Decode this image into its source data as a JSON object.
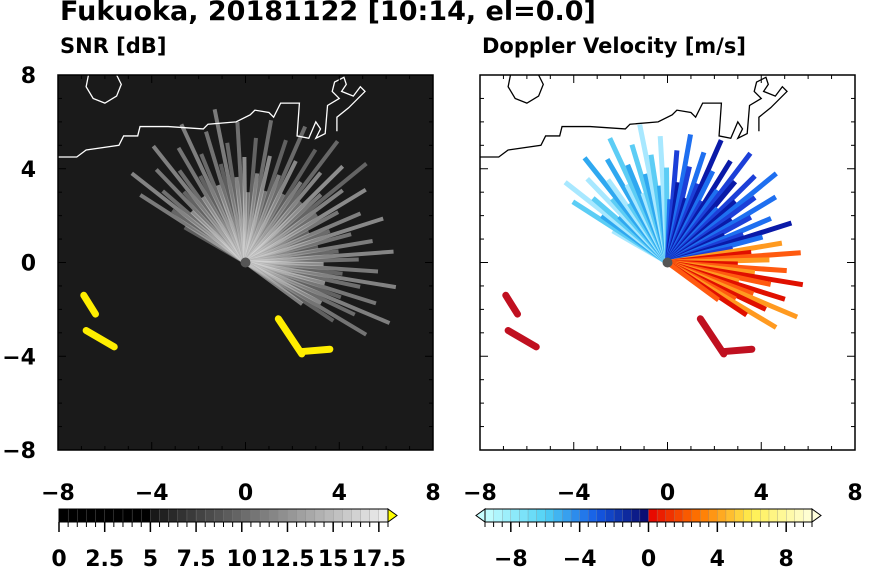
{
  "title": "Fukuoka, 20181122 [10:14, el=0.0]",
  "chart_data": [
    {
      "type": "heatmap",
      "title": "SNR [dB]",
      "xlim": [
        -8,
        8
      ],
      "ylim": [
        -8,
        8
      ],
      "xticks": [
        "−8",
        "−4",
        "0",
        "4",
        "8"
      ],
      "yticks": [
        "8",
        "4",
        "0",
        "−4",
        "−8"
      ],
      "colorbar": {
        "min": 0,
        "max": 18,
        "labels": [
          "0",
          "2.5",
          "5",
          "7.5",
          "10",
          "12.5",
          "15",
          "17.5"
        ],
        "values": [
          0,
          2.5,
          5,
          7.5,
          10,
          12.5,
          15,
          17.5
        ],
        "extend": "max",
        "over_color": "#ffff00"
      },
      "coast_color": "#ffffff"
    },
    {
      "type": "heatmap",
      "title": "Doppler Velocity [m/s]",
      "xlim": [
        -8,
        8
      ],
      "ylim": [
        -8,
        8
      ],
      "xticks": [
        "−8",
        "−4",
        "0",
        "4",
        "8"
      ],
      "yticks": [],
      "colorbar": {
        "min": -9.5,
        "max": 9.5,
        "labels": [
          "−8",
          "−4",
          "0",
          "4",
          "8"
        ],
        "values": [
          -8,
          -4,
          0,
          4,
          8
        ],
        "extend": "both"
      },
      "coast_color": "#000000"
    }
  ]
}
